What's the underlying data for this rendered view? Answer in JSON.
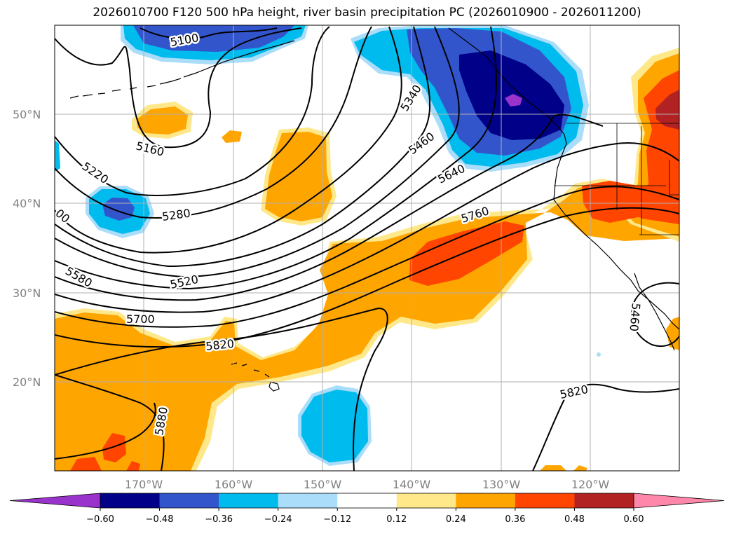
{
  "title": "2026010700 F120 500 hPa height, river basin precipitation PC (2026010900 - 2026011200)",
  "axes": {
    "lat_labels": [
      "50°N",
      "40°N",
      "30°N",
      "20°N"
    ],
    "lon_labels": [
      "170°W",
      "160°W",
      "150°W",
      "140°W",
      "130°W",
      "120°W"
    ]
  },
  "contour_labels": [
    "5100",
    "5160",
    "5220",
    "5280",
    "5340",
    "5460",
    "5640",
    "5760",
    "5520",
    "5580",
    "5700",
    "5820",
    "5880",
    "5820",
    "5460",
    "00"
  ],
  "colorbar": {
    "ticks": [
      "−0.60",
      "−0.48",
      "−0.36",
      "−0.24",
      "−0.12",
      "0.12",
      "0.24",
      "0.36",
      "0.48",
      "0.60"
    ],
    "colors": [
      "#9933cc",
      "#000088",
      "#3355cc",
      "#00bbee",
      "#aaddfa",
      "#ffffff",
      "#ffe88a",
      "#ffa500",
      "#ff4500",
      "#b22222",
      "#ff88aa"
    ]
  },
  "palette": {
    "land_line": "#000000",
    "grid": "#b0b0b0"
  }
}
